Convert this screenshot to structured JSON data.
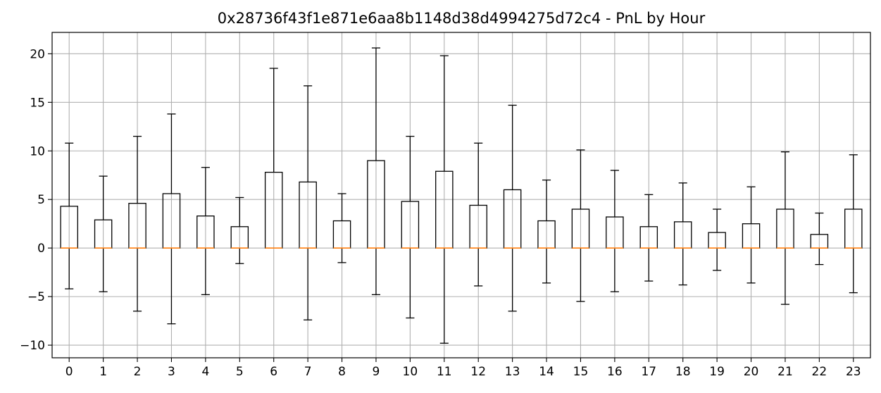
{
  "chart_data": {
    "type": "box",
    "title": "0x28736f43f1e871e6aa8b1148d38d4994275d72c4 - PnL by Hour",
    "xlabel": "",
    "ylabel": "",
    "ylim": [
      -11.3,
      22.2
    ],
    "yticks": [
      -10,
      -5,
      0,
      5,
      10,
      15,
      20
    ],
    "grid": true,
    "categories": [
      "0",
      "1",
      "2",
      "3",
      "4",
      "5",
      "6",
      "7",
      "8",
      "9",
      "10",
      "11",
      "12",
      "13",
      "14",
      "15",
      "16",
      "17",
      "18",
      "19",
      "20",
      "21",
      "22",
      "23"
    ],
    "boxes": [
      {
        "whisker_low": -4.2,
        "q1": 0,
        "median": 0,
        "q3": 4.3,
        "whisker_high": 10.8
      },
      {
        "whisker_low": -4.5,
        "q1": 0,
        "median": 0,
        "q3": 2.9,
        "whisker_high": 7.4
      },
      {
        "whisker_low": -6.5,
        "q1": 0,
        "median": 0,
        "q3": 4.6,
        "whisker_high": 11.5
      },
      {
        "whisker_low": -7.8,
        "q1": 0,
        "median": 0,
        "q3": 5.6,
        "whisker_high": 13.8
      },
      {
        "whisker_low": -4.8,
        "q1": 0,
        "median": 0,
        "q3": 3.3,
        "whisker_high": 8.3
      },
      {
        "whisker_low": -1.6,
        "q1": 0,
        "median": 0,
        "q3": 2.2,
        "whisker_high": 5.2
      },
      {
        "whisker_low": 0,
        "q1": 0,
        "median": 0,
        "q3": 7.8,
        "whisker_high": 18.5
      },
      {
        "whisker_low": -7.4,
        "q1": 0,
        "median": 0,
        "q3": 6.8,
        "whisker_high": 16.7
      },
      {
        "whisker_low": -1.5,
        "q1": 0,
        "median": 0,
        "q3": 2.8,
        "whisker_high": 5.6
      },
      {
        "whisker_low": -4.8,
        "q1": 0,
        "median": 0,
        "q3": 9.0,
        "whisker_high": 20.6
      },
      {
        "whisker_low": -7.2,
        "q1": 0,
        "median": 0,
        "q3": 4.8,
        "whisker_high": 11.5
      },
      {
        "whisker_low": -9.8,
        "q1": 0,
        "median": 0,
        "q3": 7.9,
        "whisker_high": 19.8
      },
      {
        "whisker_low": -3.9,
        "q1": 0,
        "median": 0,
        "q3": 4.4,
        "whisker_high": 10.8
      },
      {
        "whisker_low": -6.5,
        "q1": 0,
        "median": 0,
        "q3": 6.0,
        "whisker_high": 14.7
      },
      {
        "whisker_low": -3.6,
        "q1": 0,
        "median": 0,
        "q3": 2.8,
        "whisker_high": 7.0
      },
      {
        "whisker_low": -5.5,
        "q1": 0,
        "median": 0,
        "q3": 4.0,
        "whisker_high": 10.1
      },
      {
        "whisker_low": -4.5,
        "q1": 0,
        "median": 0,
        "q3": 3.2,
        "whisker_high": 8.0
      },
      {
        "whisker_low": -3.4,
        "q1": 0,
        "median": 0,
        "q3": 2.2,
        "whisker_high": 5.5
      },
      {
        "whisker_low": -3.8,
        "q1": 0,
        "median": 0,
        "q3": 2.7,
        "whisker_high": 6.7
      },
      {
        "whisker_low": -2.3,
        "q1": 0,
        "median": 0,
        "q3": 1.6,
        "whisker_high": 4.0
      },
      {
        "whisker_low": -3.6,
        "q1": 0,
        "median": 0,
        "q3": 2.5,
        "whisker_high": 6.3
      },
      {
        "whisker_low": -5.8,
        "q1": 0,
        "median": 0,
        "q3": 4.0,
        "whisker_high": 9.9
      },
      {
        "whisker_low": -1.7,
        "q1": 0,
        "median": 0,
        "q3": 1.4,
        "whisker_high": 3.6
      },
      {
        "whisker_low": -4.6,
        "q1": 0,
        "median": 0,
        "q3": 4.0,
        "whisker_high": 9.6
      }
    ],
    "colors": {
      "box": "#000000",
      "median": "#ff7f0e",
      "grid": "#b0b0b0",
      "axes": "#000000"
    }
  }
}
